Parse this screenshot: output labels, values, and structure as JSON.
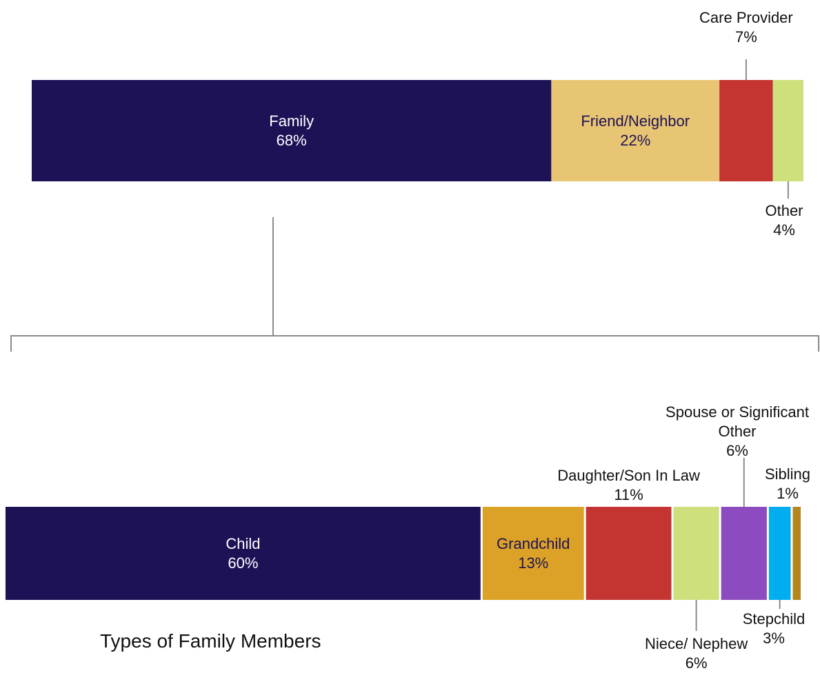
{
  "chart_data": [
    {
      "type": "stacked-bar",
      "categories": [
        "Family",
        "Friend/Neighbor",
        "Care Provider",
        "Other"
      ],
      "values": [
        68,
        22,
        7,
        4
      ],
      "value_labels": [
        "68%",
        "22%",
        "7%",
        "4%"
      ],
      "colors": [
        "#1e1257",
        "#e8c572",
        "#c43532",
        "#cde07c"
      ]
    },
    {
      "type": "stacked-bar",
      "title": "Types of Family Members",
      "categories": [
        "Child",
        "Grandchild",
        "Daughter/Son In Law",
        "Niece/ Nephew",
        "Spouse or Significant Other",
        "Stepchild",
        "Sibling"
      ],
      "values": [
        60,
        13,
        11,
        6,
        6,
        3,
        1
      ],
      "value_labels": [
        "60%",
        "13%",
        "11%",
        "6%",
        "6%",
        "3%",
        "1%"
      ],
      "colors": [
        "#1e1257",
        "#dba227",
        "#c43532",
        "#cde07c",
        "#8c4bbf",
        "#00aeef",
        "#b5861f"
      ]
    }
  ]
}
